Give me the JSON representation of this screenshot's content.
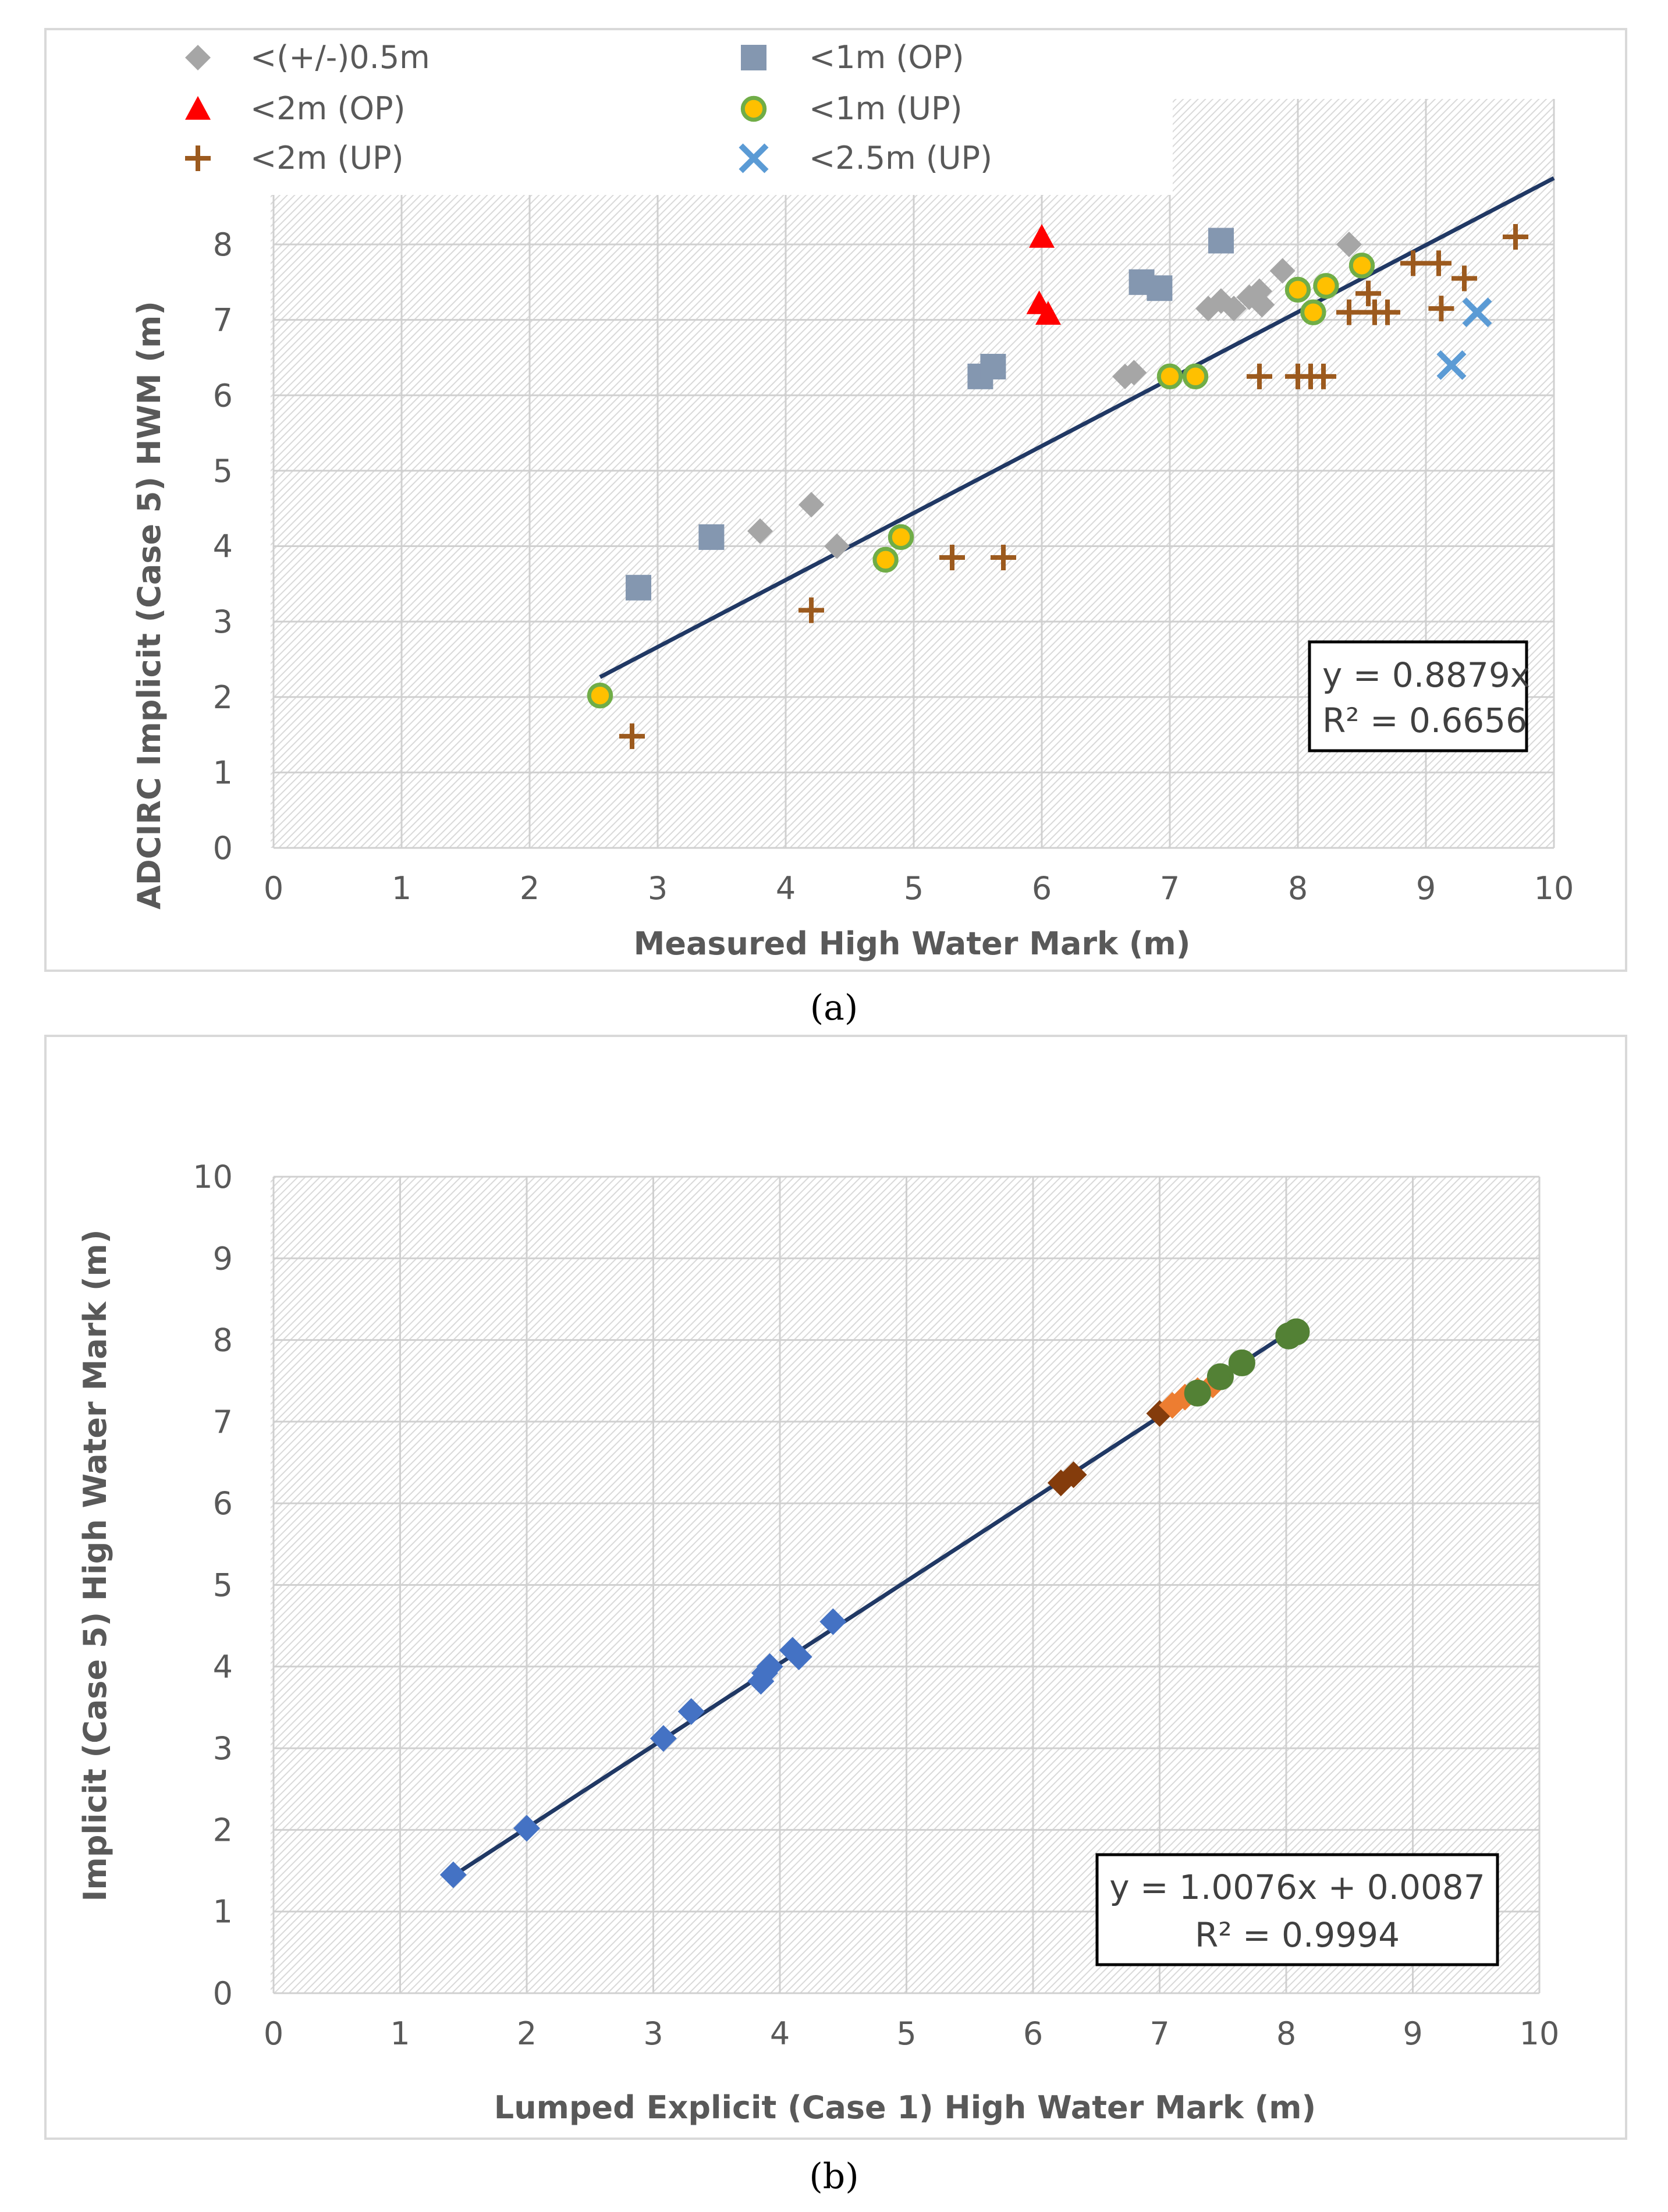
{
  "chart_data": [
    {
      "id": "a",
      "type": "scatter",
      "caption": "(a)",
      "xlabel": "Measured High Water Mark (m)",
      "ylabel": "ADCIRC Implicit  (Case 5)  HWM (m)",
      "xlim": [
        0,
        10
      ],
      "ylim": [
        0,
        9
      ],
      "xticks": [
        "0",
        "1",
        "2",
        "3",
        "4",
        "5",
        "6",
        "7",
        "8",
        "9",
        "10"
      ],
      "yticks": [
        "0",
        "1",
        "2",
        "3",
        "4",
        "5",
        "6",
        "7",
        "8"
      ],
      "legend_position": "top-left",
      "series": [
        {
          "name": "<(+/-)0.5m",
          "marker": "diamond",
          "color": "#A6A6A6",
          "points": [
            [
              3.8,
              4.2
            ],
            [
              4.2,
              4.55
            ],
            [
              4.4,
              4.0
            ],
            [
              6.65,
              6.25
            ],
            [
              6.72,
              6.3
            ],
            [
              7.3,
              7.15
            ],
            [
              7.4,
              7.25
            ],
            [
              7.5,
              7.15
            ],
            [
              7.62,
              7.3
            ],
            [
              7.7,
              7.38
            ],
            [
              7.72,
              7.2
            ],
            [
              7.88,
              7.65
            ],
            [
              8.4,
              8.0
            ]
          ]
        },
        {
          "name": "<1m (OP)",
          "marker": "square",
          "color": "#8497B0",
          "points": [
            [
              2.85,
              3.45
            ],
            [
              3.42,
              4.12
            ],
            [
              5.52,
              6.25
            ],
            [
              5.62,
              6.38
            ],
            [
              6.78,
              7.5
            ],
            [
              6.92,
              7.42
            ],
            [
              7.4,
              8.05
            ]
          ]
        },
        {
          "name": "<2m (OP)",
          "marker": "triangle",
          "color": "#FF0000",
          "points": [
            [
              6.0,
              8.1
            ],
            [
              5.98,
              7.22
            ],
            [
              6.05,
              7.08
            ]
          ]
        },
        {
          "name": "<1m (UP)",
          "marker": "circle",
          "color": "#FFC000",
          "stroke": "#70AD47",
          "points": [
            [
              2.55,
              2.02
            ],
            [
              4.78,
              3.82
            ],
            [
              4.9,
              4.12
            ],
            [
              7.0,
              6.25
            ],
            [
              7.2,
              6.25
            ],
            [
              8.0,
              7.4
            ],
            [
              8.12,
              7.1
            ],
            [
              8.22,
              7.45
            ],
            [
              8.5,
              7.72
            ]
          ]
        },
        {
          "name": "<2m (UP)",
          "marker": "plus",
          "color": "#9C5A1E",
          "points": [
            [
              2.8,
              1.48
            ],
            [
              4.2,
              3.15
            ],
            [
              5.3,
              3.85
            ],
            [
              5.7,
              3.85
            ],
            [
              7.7,
              6.25
            ],
            [
              8.0,
              6.25
            ],
            [
              8.1,
              6.25
            ],
            [
              8.2,
              6.25
            ],
            [
              8.4,
              7.1
            ],
            [
              8.55,
              7.35
            ],
            [
              8.6,
              7.1
            ],
            [
              8.7,
              7.1
            ],
            [
              8.9,
              7.75
            ],
            [
              9.1,
              7.75
            ],
            [
              9.12,
              7.15
            ],
            [
              9.3,
              7.55
            ],
            [
              9.7,
              8.1
            ]
          ]
        },
        {
          "name": "<2.5m (UP)",
          "marker": "cross",
          "color": "#5B9BD5",
          "points": [
            [
              9.2,
              6.4
            ],
            [
              9.4,
              7.1
            ]
          ]
        }
      ],
      "trendline": {
        "slope": 0.8879,
        "intercept": 0,
        "x_range": [
          2.55,
          10
        ]
      },
      "equation": "y = 0.8879x",
      "r_squared": "R² = 0.6656"
    },
    {
      "id": "b",
      "type": "scatter",
      "caption": "(b)",
      "xlabel": "Lumped Explicit (Case 1) High Water Mark (m)",
      "ylabel": "Implicit (Case 5) High Water Mark (m)",
      "xlim": [
        0,
        10
      ],
      "ylim": [
        0,
        10
      ],
      "xticks": [
        "0",
        "1",
        "2",
        "3",
        "4",
        "5",
        "6",
        "7",
        "8",
        "9",
        "10"
      ],
      "yticks": [
        "0",
        "1",
        "2",
        "3",
        "4",
        "5",
        "6",
        "7",
        "8",
        "9",
        "10"
      ],
      "series": [
        {
          "name": "blue diamonds",
          "marker": "diamond",
          "color": "#4472C4",
          "points": [
            [
              1.42,
              1.45
            ],
            [
              2.0,
              2.02
            ],
            [
              3.08,
              3.12
            ],
            [
              3.3,
              3.45
            ],
            [
              3.85,
              3.82
            ],
            [
              3.88,
              3.92
            ],
            [
              3.92,
              4.0
            ],
            [
              4.1,
              4.2
            ],
            [
              4.15,
              4.12
            ],
            [
              4.42,
              4.55
            ]
          ]
        },
        {
          "name": "brown diamonds",
          "marker": "diamond",
          "color": "#843C0C",
          "points": [
            [
              6.22,
              6.25
            ],
            [
              6.32,
              6.35
            ],
            [
              7.0,
              7.1
            ]
          ]
        },
        {
          "name": "orange diamonds",
          "marker": "diamond",
          "color": "#ED7D31",
          "points": [
            [
              7.1,
              7.2
            ],
            [
              7.2,
              7.3
            ],
            [
              7.3,
              7.38
            ],
            [
              7.42,
              7.45
            ]
          ]
        },
        {
          "name": "green circles",
          "marker": "circle",
          "color": "#538135",
          "points": [
            [
              7.3,
              7.35
            ],
            [
              7.48,
              7.55
            ],
            [
              7.65,
              7.72
            ],
            [
              8.02,
              8.05
            ],
            [
              8.08,
              8.1
            ]
          ]
        }
      ],
      "trendline": {
        "slope": 1.0076,
        "intercept": 0.0087,
        "x_range": [
          1.42,
          8.1
        ]
      },
      "equation": "y = 1.0076x + 0.0087",
      "r_squared": "R² = 0.9994"
    }
  ]
}
